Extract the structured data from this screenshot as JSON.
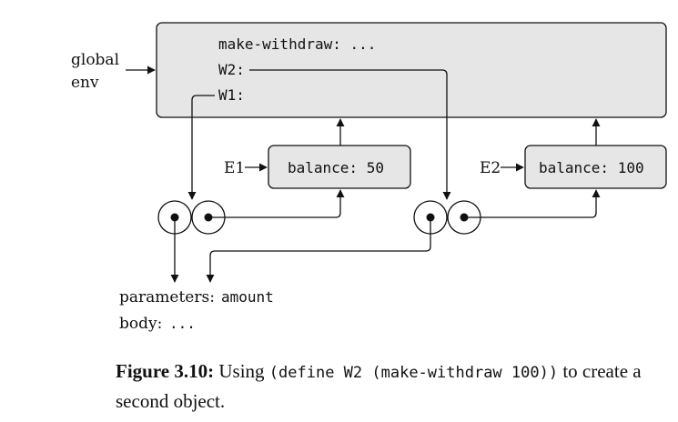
{
  "global_env_label_line1": "global",
  "global_env_label_line2": "env",
  "global_frame": {
    "bindings": [
      "make-withdraw: ...",
      "W2:",
      "W1:"
    ]
  },
  "e1": {
    "label": "E1",
    "binding": "balance: 50"
  },
  "e2": {
    "label": "E2",
    "binding": "balance: 100"
  },
  "procedure_text": {
    "parameters_label": "parameters:",
    "parameters_value": "amount",
    "body_label": "body:",
    "body_value": "..."
  },
  "caption": {
    "label": "Figure 3.10:",
    "pre": " Using ",
    "code": "(define W2 (make-withdraw 100))",
    "post": " to create a second object."
  }
}
